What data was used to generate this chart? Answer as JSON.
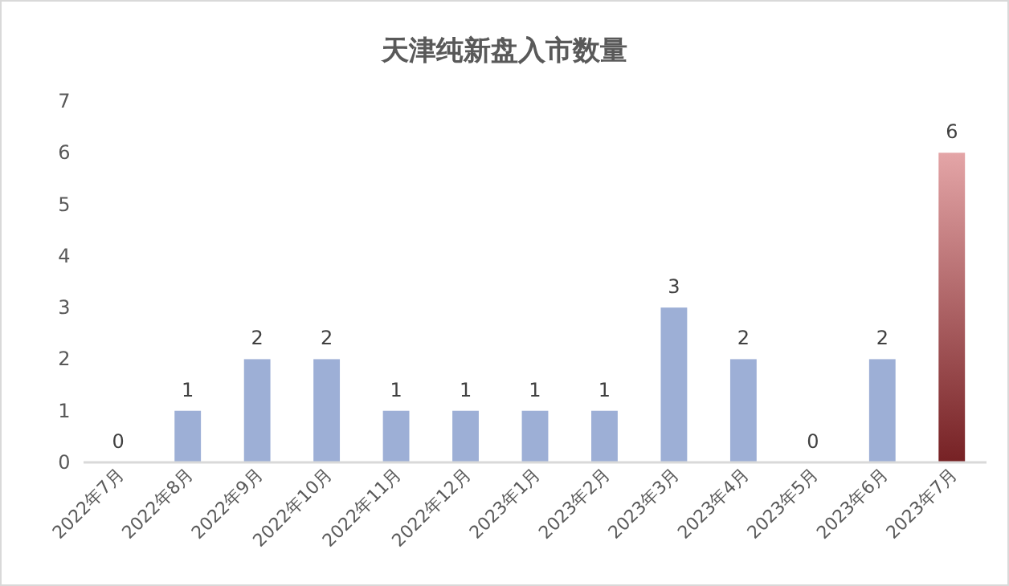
{
  "chart_data": {
    "type": "bar",
    "title": "天津纯新盘入市数量",
    "categories": [
      "2022年7月",
      "2022年8月",
      "2022年9月",
      "2022年10月",
      "2022年11月",
      "2022年12月",
      "2023年1月",
      "2023年2月",
      "2023年3月",
      "2023年4月",
      "2023年5月",
      "2023年6月",
      "2023年7月"
    ],
    "values": [
      0,
      1,
      2,
      2,
      1,
      1,
      1,
      1,
      3,
      2,
      0,
      2,
      6
    ],
    "colors": [
      "#9dafd6",
      "#9dafd6",
      "#9dafd6",
      "#9dafd6",
      "#9dafd6",
      "#9dafd6",
      "#9dafd6",
      "#9dafd6",
      "#9dafd6",
      "#9dafd6",
      "#9dafd6",
      "#9dafd6",
      "#c4373c"
    ],
    "ylim": [
      0,
      7
    ],
    "yticks": [
      0,
      1,
      2,
      3,
      4,
      5,
      6,
      7
    ],
    "grid": false,
    "data_labels": true
  }
}
